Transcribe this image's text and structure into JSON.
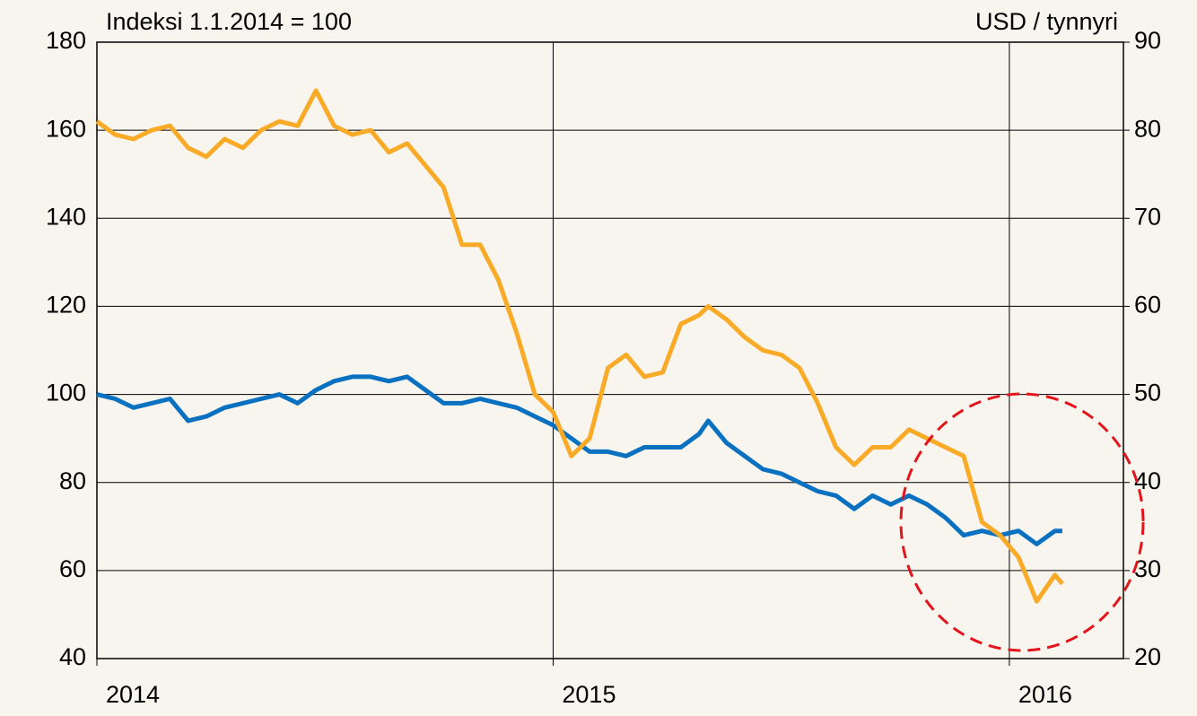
{
  "chart_data": {
    "type": "line",
    "y_label": "Indeksi 1.1.2014 = 100",
    "y2_label": "USD / tynnyri",
    "x": [
      2014.0,
      2014.04,
      2014.08,
      2014.12,
      2014.16,
      2014.2,
      2014.24,
      2014.28,
      2014.32,
      2014.36,
      2014.4,
      2014.44,
      2014.48,
      2014.52,
      2014.56,
      2014.6,
      2014.64,
      2014.68,
      2014.72,
      2014.76,
      2014.8,
      2014.84,
      2014.88,
      2014.92,
      2014.96,
      2015.0,
      2015.04,
      2015.08,
      2015.12,
      2015.16,
      2015.2,
      2015.24,
      2015.28,
      2015.32,
      2015.34,
      2015.38,
      2015.42,
      2015.46,
      2015.5,
      2015.54,
      2015.58,
      2015.62,
      2015.66,
      2015.7,
      2015.74,
      2015.78,
      2015.82,
      2015.86,
      2015.9,
      2015.94,
      2015.98,
      2016.02,
      2016.06,
      2016.1,
      2016.116
    ],
    "series": [
      {
        "color": "#0a70c0",
        "axis": "y",
        "values": [
          100,
          99,
          97,
          98,
          99,
          94,
          95,
          97,
          98,
          99,
          100,
          98,
          101,
          103,
          104,
          104,
          103,
          104,
          101,
          98,
          98,
          99,
          98,
          97,
          95,
          93,
          90,
          87,
          87,
          86,
          88,
          88,
          88,
          91,
          94,
          89,
          86,
          83,
          82,
          80,
          78,
          77,
          74,
          77,
          75,
          77,
          75,
          72,
          68,
          69,
          68,
          69,
          66,
          69,
          69
        ]
      },
      {
        "color": "#f9ab28",
        "axis": "y2",
        "values": [
          81,
          79.5,
          79,
          80,
          80.5,
          78,
          77,
          79,
          78,
          80,
          81,
          80.5,
          84.5,
          80.5,
          79.5,
          80,
          77.5,
          78.5,
          76,
          73.5,
          67,
          67,
          63,
          57,
          50,
          48,
          43,
          45,
          53,
          54.5,
          52,
          52.5,
          58,
          59,
          60,
          58.5,
          56.5,
          55,
          54.5,
          53,
          49,
          44,
          42,
          44,
          44,
          46,
          45,
          44,
          43,
          35.5,
          34,
          31.5,
          26.5,
          29.5,
          28.5
        ]
      }
    ],
    "xlim": [
      2014,
      2016.25
    ],
    "xticks": [
      2014,
      2015,
      2016
    ],
    "ylim": [
      40,
      180
    ],
    "yticks": [
      40,
      60,
      80,
      100,
      120,
      140,
      160,
      180
    ],
    "y2lim": [
      20,
      90
    ],
    "y2ticks": [
      20,
      30,
      40,
      50,
      60,
      70,
      80,
      90
    ],
    "grid": true
  }
}
